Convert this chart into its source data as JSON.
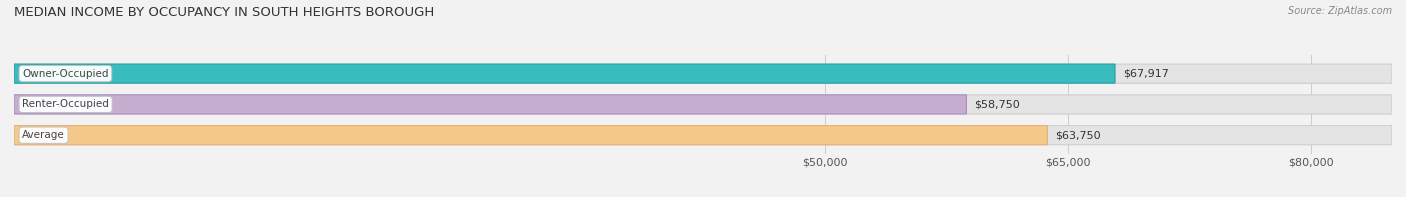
{
  "title": "MEDIAN INCOME BY OCCUPANCY IN SOUTH HEIGHTS BOROUGH",
  "source": "Source: ZipAtlas.com",
  "categories": [
    "Owner-Occupied",
    "Renter-Occupied",
    "Average"
  ],
  "values": [
    67917,
    58750,
    63750
  ],
  "labels": [
    "$67,917",
    "$58,750",
    "$63,750"
  ],
  "bar_colors": [
    "#38bcbd",
    "#c5aed0",
    "#f5c98a"
  ],
  "bar_edge_colors": [
    "#2aa0a1",
    "#aa90be",
    "#e8b070"
  ],
  "xlim": [
    0,
    85000
  ],
  "xticks": [
    50000,
    65000,
    80000
  ],
  "xticklabels": [
    "$50,000",
    "$65,000",
    "$80,000"
  ],
  "bg_color": "#f2f2f2",
  "bar_bg_color": "#e4e4e4",
  "bar_bg_edge_color": "#d0d0d0",
  "title_fontsize": 9.5,
  "tick_fontsize": 8,
  "label_fontsize": 8,
  "category_fontsize": 7.5
}
